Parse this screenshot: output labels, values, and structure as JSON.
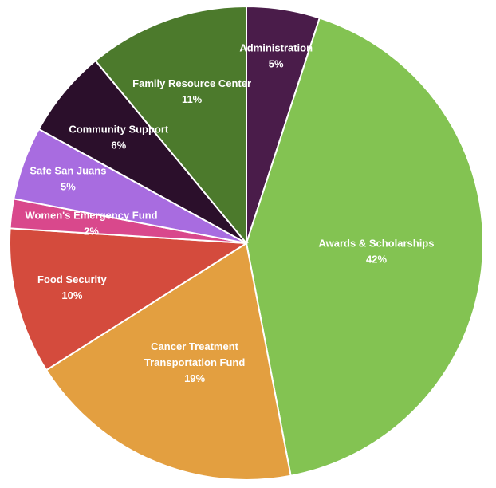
{
  "chart_data": {
    "type": "pie",
    "slices": [
      {
        "lines": [
          "Administration"
        ],
        "pct_label": "5%",
        "value": 5,
        "color": "#4a1c4a"
      },
      {
        "lines": [
          "Awards & Scholarships"
        ],
        "pct_label": "42%",
        "value": 42,
        "color": "#83c352"
      },
      {
        "lines": [
          "Cancer Treatment",
          "Transportation Fund"
        ],
        "pct_label": "19%",
        "value": 19,
        "color": "#e39f40"
      },
      {
        "lines": [
          "Food Security"
        ],
        "pct_label": "10%",
        "value": 10,
        "color": "#d44b3d"
      },
      {
        "lines": [
          "Women's Emergency Fund"
        ],
        "pct_label": "2%",
        "value": 2,
        "color": "#d9488c"
      },
      {
        "lines": [
          "Safe San Juans"
        ],
        "pct_label": "5%",
        "value": 5,
        "color": "#a86ce0"
      },
      {
        "lines": [
          "Community Support"
        ],
        "pct_label": "6%",
        "value": 6,
        "color": "#2b0f2b"
      },
      {
        "lines": [
          "Family Resource Center"
        ],
        "pct_label": "11%",
        "value": 11,
        "color": "#4c7a2c"
      }
    ]
  }
}
